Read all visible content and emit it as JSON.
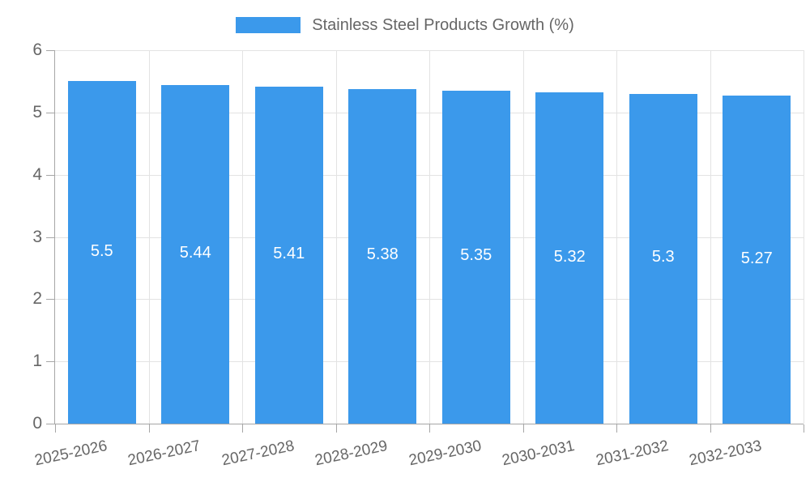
{
  "legend": {
    "label": "Stainless Steel Products Growth (%)"
  },
  "colors": {
    "bar": "#3B99EB",
    "grid": "#E3E3E3",
    "axis": "#A6A6A6",
    "tick_text": "#666666",
    "value_text": "#FFFFFF",
    "background": "#FFFFFF"
  },
  "chart_data": {
    "type": "bar",
    "categories": [
      "2025-2026",
      "2026-2027",
      "2027-2028",
      "2028-2029",
      "2029-2030",
      "2030-2031",
      "2031-2032",
      "2032-2033"
    ],
    "series": [
      {
        "name": "Stainless Steel Products Growth (%)",
        "values": [
          5.5,
          5.44,
          5.41,
          5.38,
          5.35,
          5.32,
          5.3,
          5.27
        ]
      }
    ],
    "bar_labels": [
      "5.5",
      "5.44",
      "5.41",
      "5.38",
      "5.35",
      "5.32",
      "5.3",
      "5.27"
    ],
    "title": "",
    "xlabel": "",
    "ylabel": "",
    "ylim": [
      0,
      6
    ],
    "yticks": [
      0,
      1,
      2,
      3,
      4,
      5,
      6
    ],
    "grid": true,
    "legend_position": "top"
  }
}
